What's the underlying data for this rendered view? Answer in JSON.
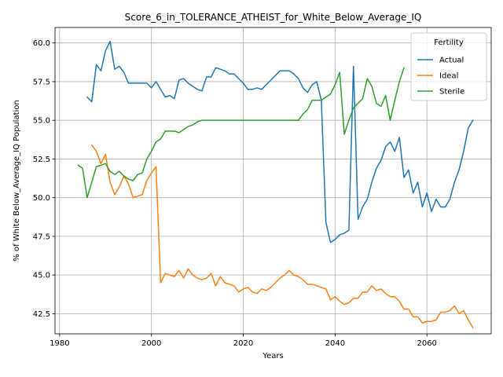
{
  "chart_data": {
    "type": "line",
    "title": "Score_6_in_TOLERANCE_ATHEIST_for_White_Below_Average_IQ",
    "xlabel": "Years",
    "ylabel": "% of White Below_Average_IQ Population",
    "xlim": [
      1979,
      2074
    ],
    "ylim": [
      41.2,
      61.0
    ],
    "xticks": [
      1980,
      2000,
      2020,
      2040,
      2060
    ],
    "yticks": [
      42.5,
      45.0,
      47.5,
      50.0,
      52.5,
      55.0,
      57.5,
      60.0
    ],
    "grid": true,
    "legend": {
      "title": "Fertility",
      "placement": "top-right"
    },
    "series": [
      {
        "name": "Actual",
        "color": "#1f77b4",
        "x": [
          1986,
          1987,
          1988,
          1989,
          1990,
          1991,
          1992,
          1993,
          1994,
          1995,
          1996,
          1997,
          1998,
          1999,
          2000,
          2001,
          2002,
          2003,
          2004,
          2005,
          2006,
          2007,
          2008,
          2009,
          2010,
          2011,
          2012,
          2013,
          2014,
          2015,
          2016,
          2017,
          2018,
          2019,
          2020,
          2021,
          2022,
          2023,
          2024,
          2025,
          2026,
          2027,
          2028,
          2029,
          2030,
          2031,
          2032,
          2033,
          2034,
          2035,
          2036,
          2037,
          2038,
          2039,
          2040,
          2041,
          2042,
          2043,
          2044,
          2045,
          2046,
          2047,
          2048,
          2049,
          2050,
          2051,
          2052,
          2053,
          2054,
          2055,
          2056,
          2057,
          2058,
          2059,
          2060,
          2061,
          2062,
          2063,
          2064,
          2065,
          2066,
          2067,
          2068,
          2069,
          2070
        ],
        "y": [
          56.5,
          56.2,
          58.6,
          58.2,
          59.5,
          60.1,
          58.3,
          58.5,
          58.1,
          57.4,
          57.4,
          57.4,
          57.4,
          57.4,
          57.1,
          57.5,
          57.0,
          56.5,
          56.6,
          56.4,
          57.6,
          57.7,
          57.4,
          57.2,
          57.0,
          56.9,
          57.8,
          57.8,
          58.4,
          58.3,
          58.2,
          58.0,
          58.0,
          57.7,
          57.4,
          57.0,
          57.0,
          57.1,
          57.0,
          57.3,
          57.6,
          57.9,
          58.2,
          58.2,
          58.2,
          58.0,
          57.7,
          57.1,
          56.8,
          57.3,
          57.5,
          56.3,
          48.4,
          47.1,
          47.3,
          47.6,
          47.7,
          47.9,
          58.5,
          48.6,
          49.4,
          49.9,
          51.0,
          51.9,
          52.4,
          53.3,
          53.6,
          53.0,
          53.9,
          51.3,
          51.8,
          50.3,
          51.0,
          49.4,
          50.3,
          49.1,
          49.9,
          49.4,
          49.4,
          49.9,
          51.0,
          51.8,
          53.0,
          54.5,
          55.0
        ]
      },
      {
        "name": "Ideal",
        "color": "#ff7f0e",
        "x": [
          1987,
          1988,
          1989,
          1990,
          1991,
          1992,
          1993,
          1994,
          1995,
          1996,
          1997,
          1998,
          1999,
          2000,
          2001,
          2002,
          2003,
          2004,
          2005,
          2006,
          2007,
          2008,
          2009,
          2010,
          2011,
          2012,
          2013,
          2014,
          2015,
          2016,
          2017,
          2018,
          2019,
          2020,
          2021,
          2022,
          2023,
          2024,
          2025,
          2026,
          2027,
          2028,
          2029,
          2030,
          2031,
          2032,
          2033,
          2034,
          2035,
          2036,
          2037,
          2038,
          2039,
          2040,
          2041,
          2042,
          2043,
          2044,
          2045,
          2046,
          2047,
          2048,
          2049,
          2050,
          2051,
          2052,
          2053,
          2054,
          2055,
          2056,
          2057,
          2058,
          2059,
          2060,
          2061,
          2062,
          2063,
          2064,
          2065,
          2066,
          2067,
          2068,
          2069,
          2070
        ],
        "y": [
          53.4,
          53.0,
          52.2,
          52.8,
          51.0,
          50.2,
          50.7,
          51.4,
          50.9,
          50.0,
          50.1,
          50.2,
          51.1,
          51.6,
          52.0,
          44.5,
          45.1,
          45.0,
          44.9,
          45.3,
          44.8,
          45.4,
          45.0,
          44.8,
          44.7,
          44.8,
          45.1,
          44.3,
          44.9,
          44.5,
          44.4,
          44.3,
          43.9,
          44.1,
          44.2,
          43.9,
          43.8,
          44.1,
          44.0,
          44.2,
          44.5,
          44.8,
          45.0,
          45.3,
          45.0,
          44.9,
          44.7,
          44.4,
          44.4,
          44.3,
          44.2,
          44.1,
          43.4,
          43.6,
          43.3,
          43.1,
          43.2,
          43.5,
          43.5,
          43.9,
          43.9,
          44.3,
          44.0,
          44.1,
          43.8,
          43.6,
          43.6,
          43.3,
          42.8,
          42.8,
          42.3,
          42.3,
          41.9,
          42.0,
          42.0,
          42.1,
          42.6,
          42.6,
          42.7,
          43.0,
          42.5,
          42.7,
          42.1,
          41.6
        ]
      },
      {
        "name": "Sterile",
        "color": "#2ca02c",
        "x": [
          1984,
          1985,
          1986,
          1987,
          1988,
          1989,
          1990,
          1991,
          1992,
          1993,
          1994,
          1995,
          1996,
          1997,
          1998,
          1999,
          2000,
          2001,
          2002,
          2003,
          2004,
          2005,
          2006,
          2007,
          2008,
          2009,
          2010,
          2011,
          2012,
          2013,
          2014,
          2015,
          2016,
          2017,
          2018,
          2019,
          2020,
          2021,
          2022,
          2023,
          2024,
          2025,
          2026,
          2027,
          2028,
          2029,
          2030,
          2031,
          2032,
          2033,
          2034,
          2035,
          2036,
          2037,
          2038,
          2039,
          2040,
          2041,
          2042,
          2043,
          2044,
          2045,
          2046,
          2047,
          2048,
          2049,
          2050,
          2051,
          2052,
          2053,
          2054,
          2055
        ],
        "y": [
          52.1,
          51.9,
          50.0,
          51.0,
          52.0,
          52.1,
          52.2,
          51.7,
          51.5,
          51.7,
          51.4,
          51.2,
          51.1,
          51.5,
          51.6,
          52.5,
          53.0,
          53.6,
          53.8,
          54.3,
          54.3,
          54.3,
          54.2,
          54.4,
          54.6,
          54.7,
          54.9,
          55.0,
          55.0,
          55.0,
          55.0,
          55.0,
          55.0,
          55.0,
          55.0,
          55.0,
          55.0,
          55.0,
          55.0,
          55.0,
          55.0,
          55.0,
          55.0,
          55.0,
          55.0,
          55.0,
          55.0,
          55.0,
          55.0,
          55.4,
          55.7,
          56.3,
          56.3,
          56.3,
          56.5,
          56.7,
          57.3,
          58.1,
          54.1,
          55.0,
          55.8,
          56.1,
          56.4,
          57.7,
          57.2,
          56.1,
          55.9,
          56.6,
          55.0,
          56.3,
          57.5,
          58.4
        ]
      }
    ]
  }
}
